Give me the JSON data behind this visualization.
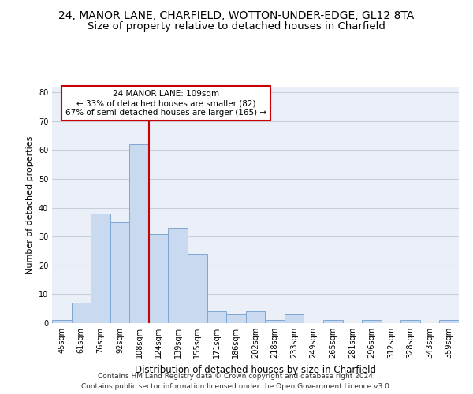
{
  "title1": "24, MANOR LANE, CHARFIELD, WOTTON-UNDER-EDGE, GL12 8TA",
  "title2": "Size of property relative to detached houses in Charfield",
  "xlabel": "Distribution of detached houses by size in Charfield",
  "ylabel": "Number of detached properties",
  "categories": [
    "45sqm",
    "61sqm",
    "76sqm",
    "92sqm",
    "108sqm",
    "124sqm",
    "139sqm",
    "155sqm",
    "171sqm",
    "186sqm",
    "202sqm",
    "218sqm",
    "233sqm",
    "249sqm",
    "265sqm",
    "281sqm",
    "296sqm",
    "312sqm",
    "328sqm",
    "343sqm",
    "359sqm"
  ],
  "bar_heights": [
    1,
    7,
    38,
    35,
    62,
    31,
    33,
    24,
    4,
    3,
    4,
    1,
    3,
    0,
    1,
    0,
    1,
    0,
    1,
    0,
    1
  ],
  "bar_color": "#c9d9f0",
  "bar_edge_color": "#7fa8d4",
  "ref_line_label": "24 MANOR LANE: 109sqm",
  "annotation_line1": "← 33% of detached houses are smaller (82)",
  "annotation_line2": "67% of semi-detached houses are larger (165) →",
  "annotation_box_color": "#ffffff",
  "annotation_box_edge": "#cc0000",
  "ref_line_color": "#cc0000",
  "ref_line_x": 4.5,
  "ylim": [
    0,
    82
  ],
  "yticks": [
    0,
    10,
    20,
    30,
    40,
    50,
    60,
    70,
    80
  ],
  "grid_color": "#c8cfd8",
  "bg_color": "#eaeff8",
  "footer1": "Contains HM Land Registry data © Crown copyright and database right 2024.",
  "footer2": "Contains public sector information licensed under the Open Government Licence v3.0.",
  "title1_fontsize": 10,
  "title2_fontsize": 9.5,
  "xlabel_fontsize": 8.5,
  "ylabel_fontsize": 8,
  "tick_fontsize": 7,
  "annotation_fontsize": 7.5,
  "footer_fontsize": 6.5
}
